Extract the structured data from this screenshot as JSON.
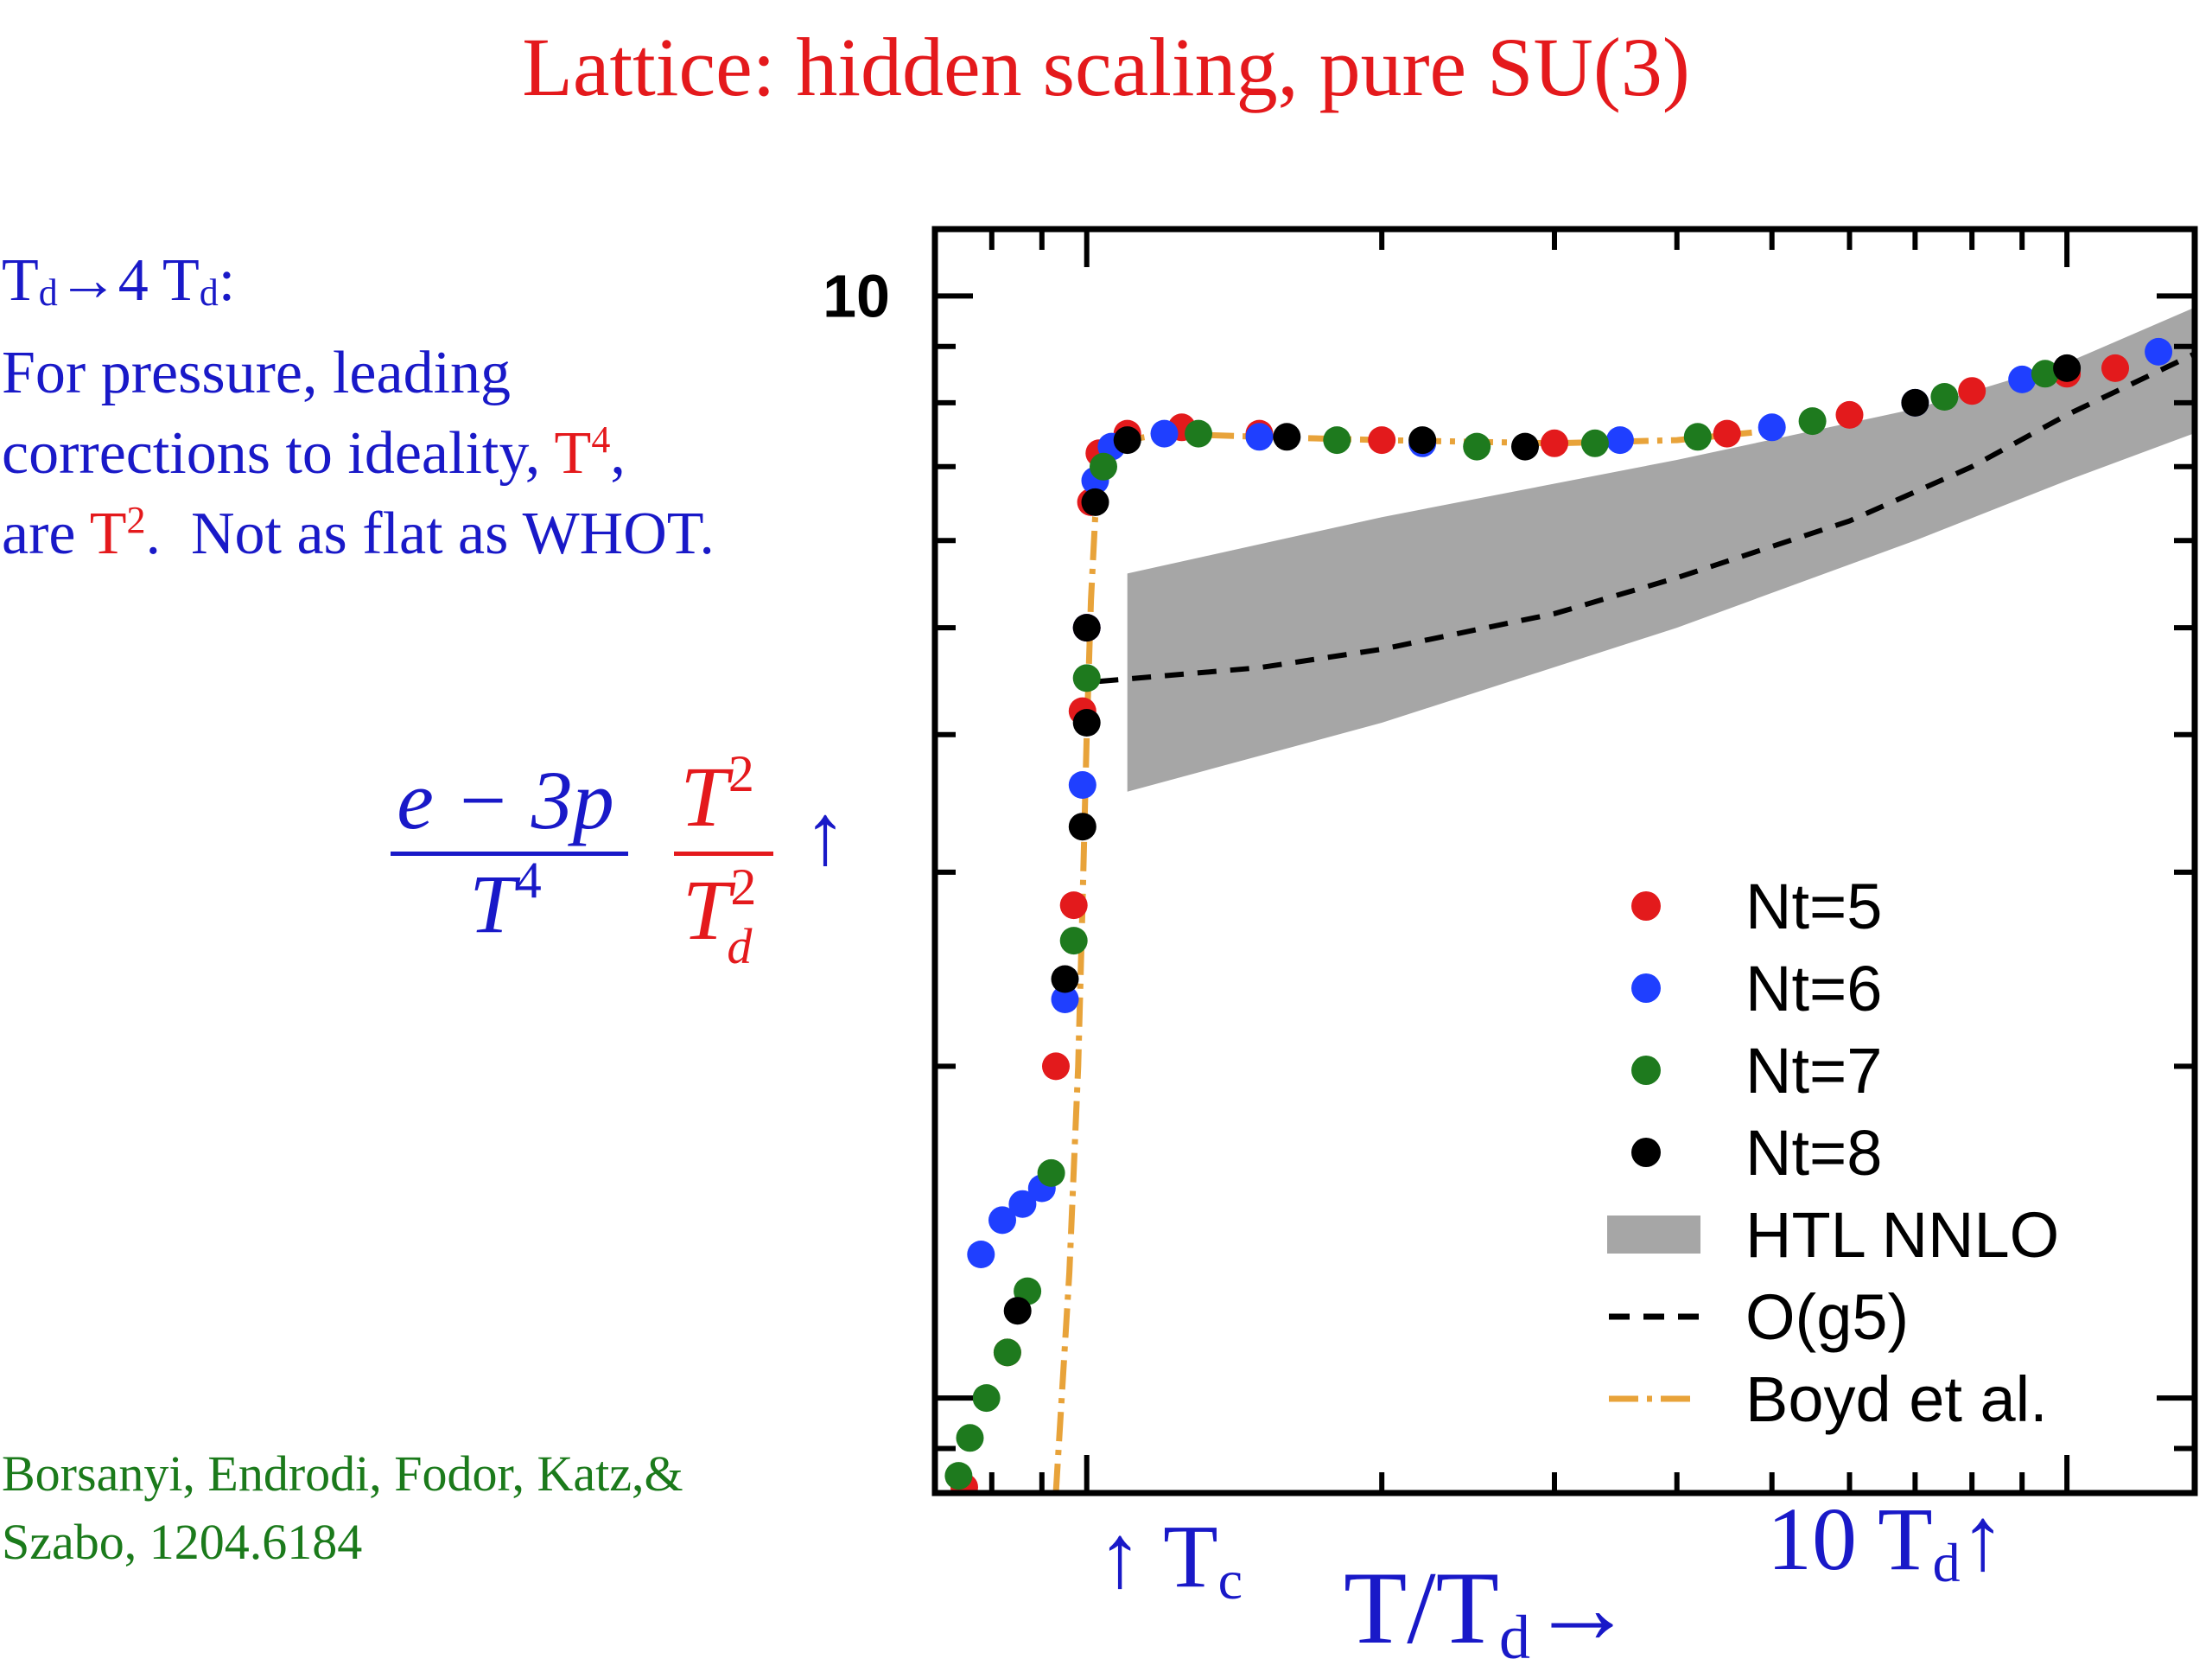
{
  "title": "Lattice: hidden scaling, pure SU(3)",
  "note": {
    "line1": "Td→4 Td:",
    "line2": "For pressure, leading",
    "line3": "corrections to ideality, T4,",
    "line4": "are T2.  Not as flat as WHOT."
  },
  "ylabel": {
    "numerator1": "e − 3p",
    "denominator1": "T4",
    "numerator2": "T2",
    "denominator2": "Td2",
    "arrow": "↑"
  },
  "annotations": {
    "tc": "↑ Tc",
    "xaxis": "T/Td→",
    "ten_td": "10 Td↑"
  },
  "citation": {
    "line1": "Borsanyi, Endrodi, Fodor, Katz,&",
    "line2": "Szabo, 1204.6184"
  },
  "colors": {
    "title": "#e4191c",
    "text_blue": "#1919c8",
    "citation_green": "#1b7a1b",
    "nt5": "#e31a1c",
    "nt6": "#1f3fff",
    "nt7": "#1e7a1e",
    "nt8": "#000000",
    "htl_band": "#a6a6a6",
    "boyd": "#e8a33a"
  },
  "chart_data": {
    "type": "scatter",
    "x_scale": "log",
    "y_scale": "log",
    "xlim": [
      0.7,
      13.5
    ],
    "ylim": [
      0.82,
      11.5
    ],
    "ytick_labels": [
      {
        "value": 10,
        "label": "10"
      }
    ],
    "legend_position": "bottom-right",
    "series": [
      {
        "name": "Nt=5",
        "color": "#e31a1c",
        "x": [
          0.75,
          0.83,
          0.93,
          0.97,
          0.99,
          1.0,
          1.01,
          1.03,
          1.1,
          1.25,
          1.5,
          2.0,
          3.0,
          4.5,
          6.0,
          8.0,
          10.0,
          11.2
        ],
        "y": [
          0.83,
          1.1,
          2.0,
          2.8,
          4.2,
          5.0,
          6.5,
          7.2,
          7.5,
          7.6,
          7.5,
          7.4,
          7.35,
          7.5,
          7.8,
          8.2,
          8.5,
          8.6
        ]
      },
      {
        "name": "Nt=6",
        "color": "#1f3fff",
        "x": [
          0.78,
          0.82,
          0.86,
          0.9,
          0.95,
          0.99,
          1.0,
          1.02,
          1.06,
          1.2,
          1.5,
          2.2,
          3.5,
          5.0,
          7.0,
          9.0,
          12.4
        ],
        "y": [
          1.35,
          1.45,
          1.5,
          1.55,
          2.3,
          3.6,
          5.0,
          6.8,
          7.3,
          7.5,
          7.45,
          7.35,
          7.4,
          7.6,
          8.0,
          8.4,
          8.9
        ]
      },
      {
        "name": "Nt=7",
        "color": "#1e7a1e",
        "x": [
          0.74,
          0.76,
          0.79,
          0.83,
          0.87,
          0.92,
          0.97,
          1.0,
          1.04,
          1.3,
          1.8,
          2.5,
          3.3,
          4.2,
          5.5,
          7.5,
          9.5
        ],
        "y": [
          0.85,
          0.92,
          1.0,
          1.1,
          1.25,
          1.6,
          2.6,
          4.5,
          7.0,
          7.5,
          7.4,
          7.3,
          7.35,
          7.45,
          7.7,
          8.1,
          8.5
        ]
      },
      {
        "name": "Nt=8",
        "color": "#000000",
        "x": [
          0.85,
          0.95,
          0.99,
          1.0,
          1.0,
          1.02,
          1.1,
          1.6,
          2.2,
          2.8,
          7.0,
          10.0
        ],
        "y": [
          1.2,
          2.4,
          3.3,
          4.1,
          5.0,
          6.5,
          7.4,
          7.45,
          7.4,
          7.3,
          8.0,
          8.6
        ]
      },
      {
        "name": "HTL NNLO",
        "type": "band",
        "color": "#a6a6a6",
        "x": [
          1.1,
          2.0,
          4.0,
          7.0,
          10.0,
          14.0
        ],
        "lower": [
          3.55,
          4.1,
          5.0,
          6.0,
          6.8,
          7.6
        ],
        "upper": [
          5.6,
          6.3,
          7.1,
          7.9,
          8.7,
          9.9
        ]
      },
      {
        "name": "O(g5)",
        "type": "line",
        "style": "dashed",
        "color": "#000000",
        "x": [
          1.03,
          1.5,
          2.0,
          3.0,
          4.0,
          6.0,
          8.0,
          10.0,
          14.0
        ],
        "y": [
          4.47,
          4.6,
          4.78,
          5.15,
          5.55,
          6.25,
          7.0,
          7.8,
          9.0
        ]
      },
      {
        "name": "Boyd et al.",
        "type": "line",
        "style": "dash-dot",
        "color": "#e8a33a",
        "x": [
          0.93,
          0.96,
          0.98,
          0.99,
          1.0,
          1.01,
          1.02,
          1.05,
          1.1,
          1.2,
          1.5,
          2.0,
          3.0,
          4.0,
          5.0
        ],
        "y": [
          0.82,
          1.3,
          2.0,
          2.8,
          4.0,
          5.3,
          6.3,
          7.1,
          7.4,
          7.5,
          7.45,
          7.4,
          7.35,
          7.4,
          7.55
        ]
      }
    ]
  }
}
